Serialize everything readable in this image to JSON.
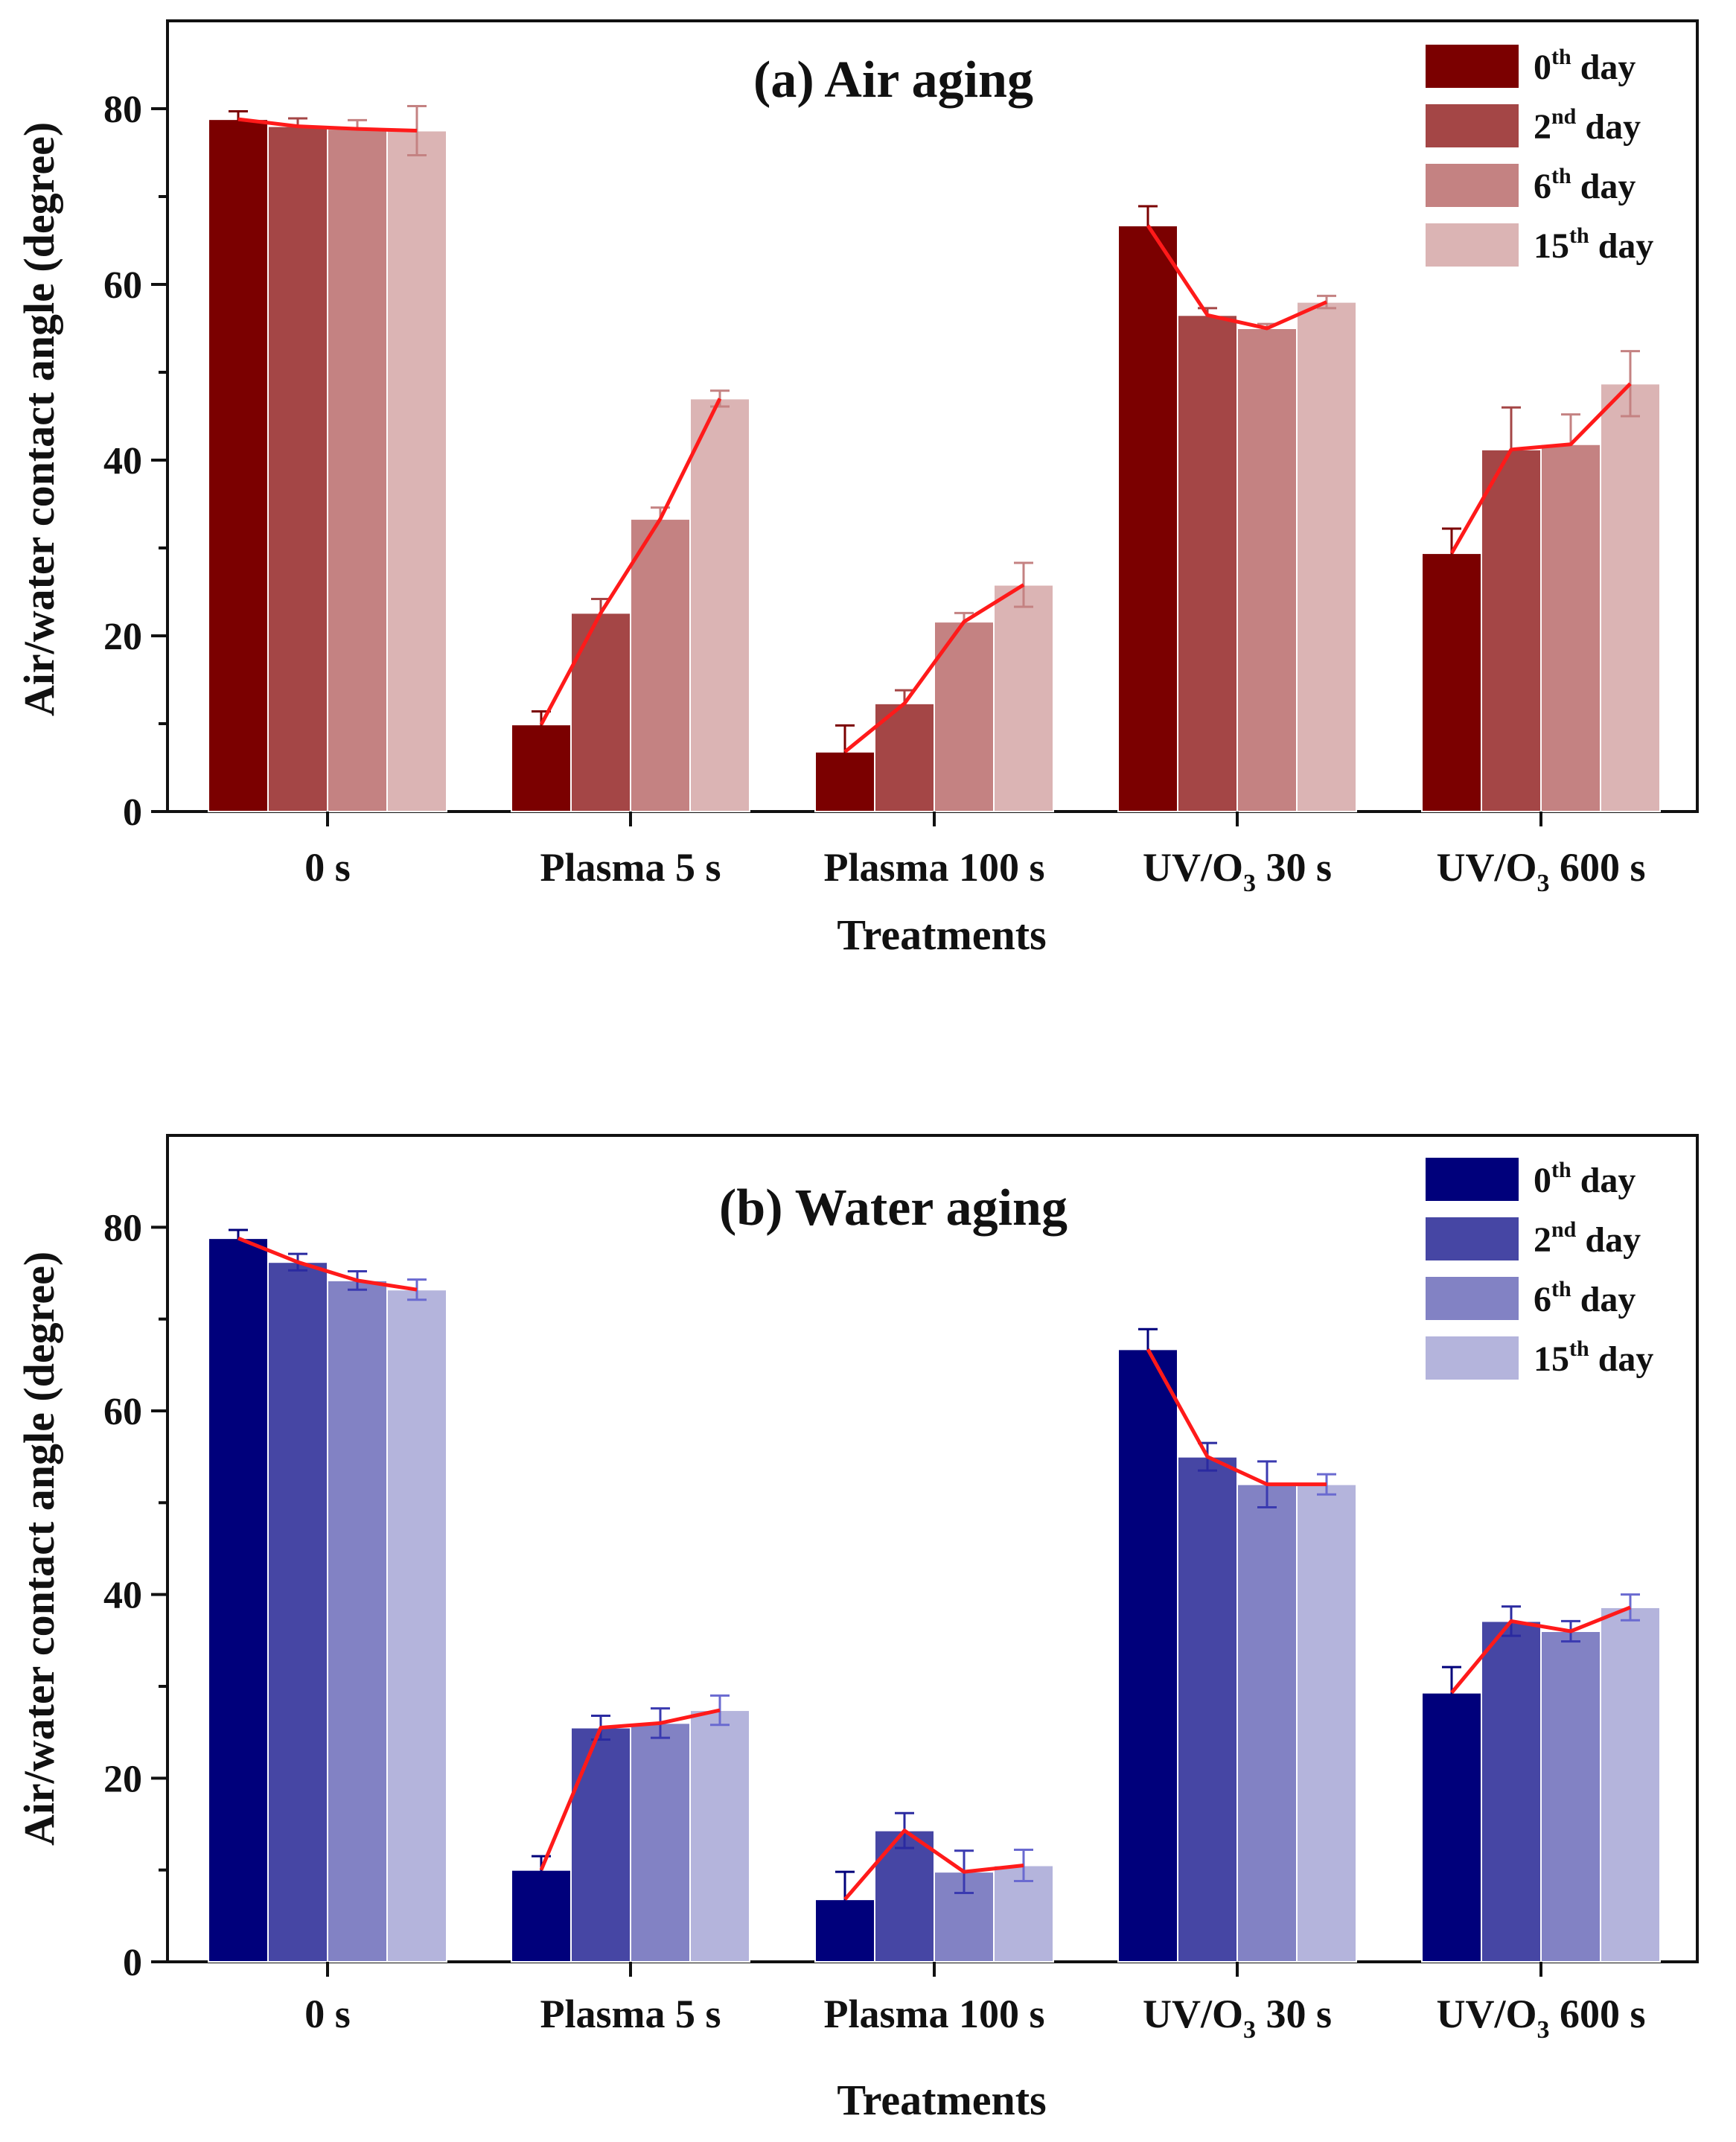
{
  "chart_data": [
    {
      "type": "bar",
      "id": "air",
      "title": "(a) Air aging",
      "xlabel": "Treatments",
      "ylabel": "Air/water contact angle (degree)",
      "ylim": [
        0,
        90
      ],
      "yticks": [
        0,
        20,
        40,
        60,
        80
      ],
      "categories": [
        {
          "base": "0 s",
          "sub": "",
          "tail": ""
        },
        {
          "base": "Plasma 5 s",
          "sub": "",
          "tail": ""
        },
        {
          "base": "Plasma 100 s",
          "sub": "",
          "tail": ""
        },
        {
          "base": "UV/O",
          "sub": "3",
          "tail": " 30 s"
        },
        {
          "base": "UV/O",
          "sub": "3",
          "tail": " 600 s"
        }
      ],
      "series": [
        {
          "name": "0th day",
          "label_num": "0",
          "label_sup": "th",
          "label_rest": " day",
          "color": "#7b0000",
          "error_color": "#7b0000",
          "values": [
            78.8,
            9.9,
            6.8,
            66.7,
            29.4
          ],
          "errors": [
            0.9,
            1.5,
            3.0,
            2.2,
            2.8
          ]
        },
        {
          "name": "2nd day",
          "label_num": "2",
          "label_sup": "nd",
          "label_rest": " day",
          "color": "#a44646",
          "error_color": "#a44646",
          "values": [
            78.0,
            22.6,
            12.3,
            56.5,
            41.2
          ],
          "errors": [
            0.9,
            1.6,
            1.5,
            0.8,
            4.8
          ]
        },
        {
          "name": "6th day",
          "label_num": "6",
          "label_sup": "th",
          "label_rest": " day",
          "color": "#c48282",
          "error_color": "#c48282",
          "values": [
            77.7,
            33.3,
            21.6,
            55.0,
            41.8
          ],
          "errors": [
            1.0,
            1.3,
            1.0,
            0.5,
            3.4
          ]
        },
        {
          "name": "15th day",
          "label_num": "15",
          "label_sup": "th",
          "label_rest": " day",
          "color": "#dbb4b4",
          "error_color": "#c48282",
          "values": [
            77.5,
            47.0,
            25.8,
            58.0,
            48.7
          ],
          "errors": [
            2.8,
            0.9,
            2.5,
            0.7,
            3.7
          ]
        }
      ]
    },
    {
      "type": "bar",
      "id": "water",
      "title": "(b) Water aging",
      "xlabel": "Treatments",
      "ylabel": "Air/water contact angle (degree)",
      "ylim": [
        0,
        90
      ],
      "yticks": [
        0,
        20,
        40,
        60,
        80
      ],
      "categories": [
        {
          "base": "0 s",
          "sub": "",
          "tail": ""
        },
        {
          "base": "Plasma 5 s",
          "sub": "",
          "tail": ""
        },
        {
          "base": "Plasma 100 s",
          "sub": "",
          "tail": ""
        },
        {
          "base": "UV/O",
          "sub": "3",
          "tail": " 30 s"
        },
        {
          "base": "UV/O",
          "sub": "3",
          "tail": " 600 s"
        }
      ],
      "series": [
        {
          "name": "0th day",
          "label_num": "0",
          "label_sup": "th",
          "label_rest": " day",
          "color": "#00007b",
          "error_color": "#00007b",
          "values": [
            78.8,
            10.0,
            6.8,
            66.7,
            29.3
          ],
          "errors": [
            0.9,
            1.5,
            3.0,
            2.2,
            2.8
          ]
        },
        {
          "name": "2nd day",
          "label_num": "2",
          "label_sup": "nd",
          "label_rest": " day",
          "color": "#4646a4",
          "error_color": "#2a2aa0",
          "values": [
            76.2,
            25.5,
            14.3,
            55.0,
            37.1
          ],
          "errors": [
            0.9,
            1.3,
            1.9,
            1.5,
            1.6
          ]
        },
        {
          "name": "6th day",
          "label_num": "6",
          "label_sup": "th",
          "label_rest": " day",
          "color": "#8282c4",
          "error_color": "#3a3ab0",
          "values": [
            74.2,
            26.0,
            9.8,
            52.0,
            36.0
          ],
          "errors": [
            1.0,
            1.6,
            2.3,
            2.5,
            1.1
          ]
        },
        {
          "name": "15th day",
          "label_num": "15",
          "label_sup": "th",
          "label_rest": " day",
          "color": "#b4b4dc",
          "error_color": "#6a6ad0",
          "values": [
            73.2,
            27.4,
            10.5,
            52.0,
            38.6
          ],
          "errors": [
            1.1,
            1.6,
            1.7,
            1.1,
            1.4
          ]
        }
      ]
    }
  ]
}
